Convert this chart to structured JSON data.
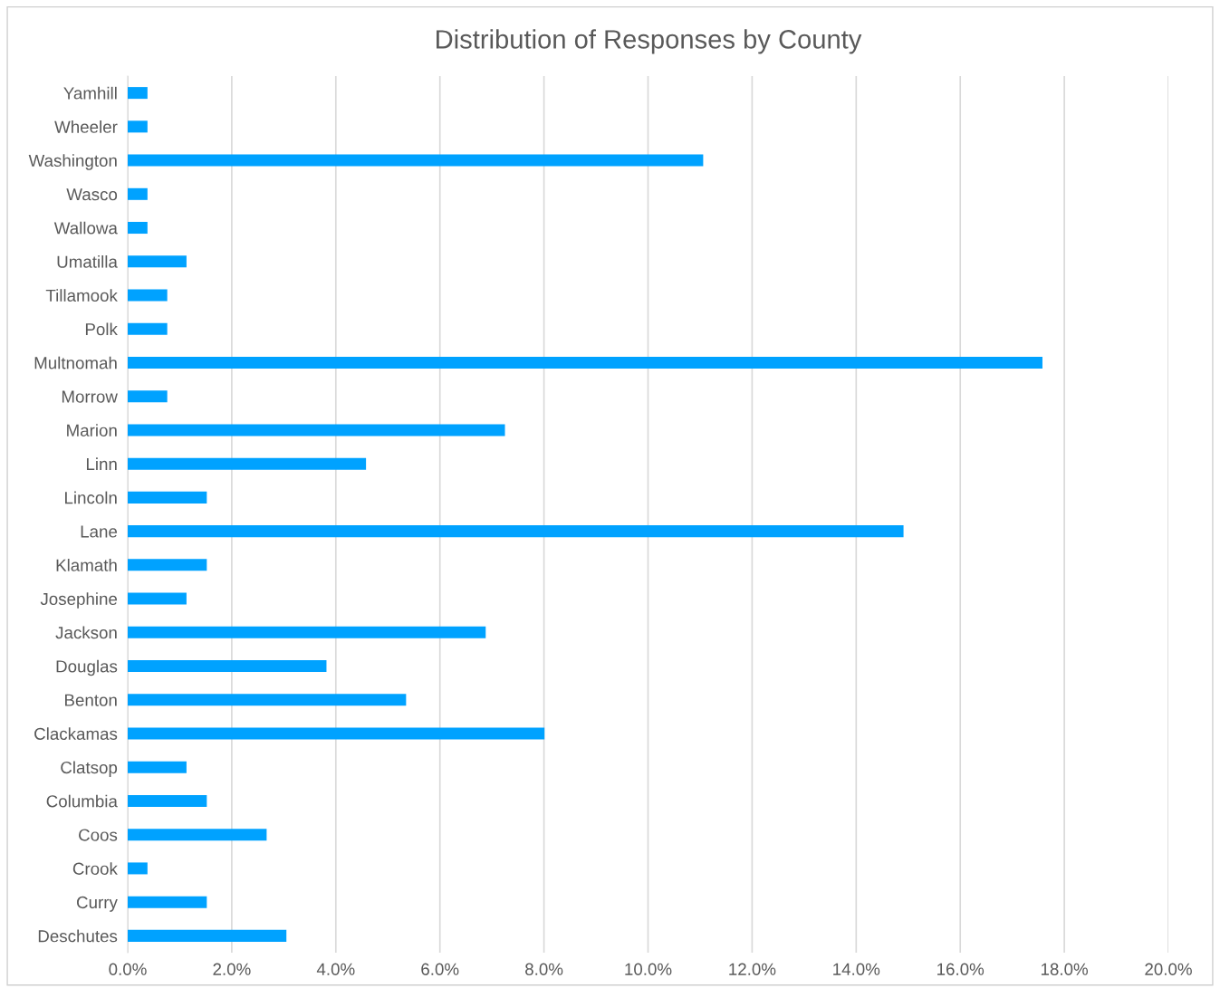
{
  "chart_data": {
    "type": "bar",
    "orientation": "horizontal",
    "title": "Distribution of Responses by County",
    "categories": [
      "Yamhill",
      "Wheeler",
      "Washington",
      "Wasco",
      "Wallowa",
      "Umatilla",
      "Tillamook",
      "Polk",
      "Multnomah",
      "Morrow",
      "Marion",
      "Linn",
      "Lincoln",
      "Lane",
      "Klamath",
      "Josephine",
      "Jackson",
      "Douglas",
      "Benton",
      "Clackamas",
      "Clatsop",
      "Columbia",
      "Coos",
      "Crook",
      "Curry",
      "Deschutes"
    ],
    "values": [
      0.38,
      0.38,
      11.06,
      0.38,
      0.38,
      1.13,
      0.76,
      0.76,
      17.58,
      0.76,
      7.25,
      4.58,
      1.52,
      14.91,
      1.52,
      1.13,
      6.88,
      3.82,
      5.35,
      8.01,
      1.13,
      1.52,
      2.67,
      0.38,
      1.52,
      3.05
    ],
    "color": "#00a2ff",
    "xlim": [
      0,
      20
    ],
    "xticks": [
      {
        "value": 0,
        "label": "0.0%"
      },
      {
        "value": 2,
        "label": "2.0%"
      },
      {
        "value": 4,
        "label": "4.0%"
      },
      {
        "value": 6,
        "label": "6.0%"
      },
      {
        "value": 8,
        "label": "8.0%"
      },
      {
        "value": 10,
        "label": "10.0%"
      },
      {
        "value": 12,
        "label": "12.0%"
      },
      {
        "value": 14,
        "label": "14.0%"
      },
      {
        "value": 16,
        "label": "16.0%"
      },
      {
        "value": 18,
        "label": "18.0%"
      },
      {
        "value": 20,
        "label": "20.0%"
      }
    ],
    "grid": "x",
    "legend": false
  }
}
